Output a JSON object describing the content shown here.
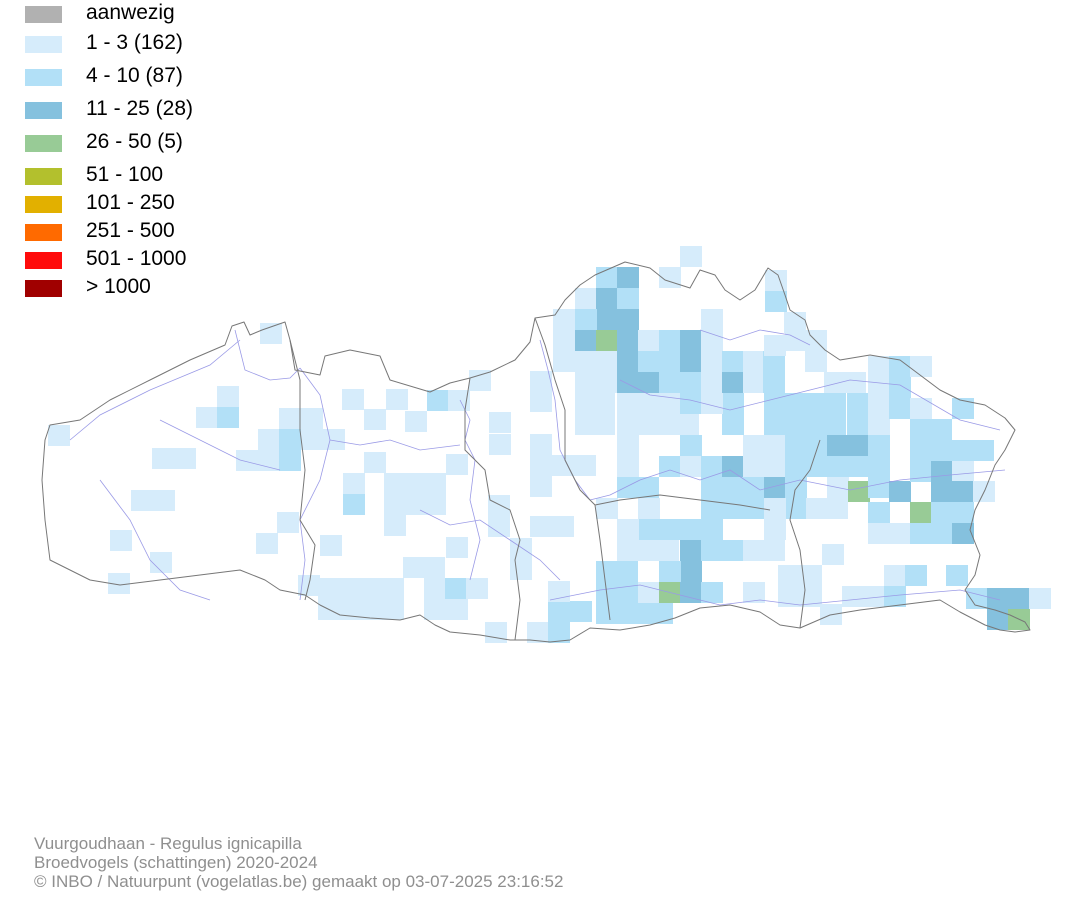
{
  "legend": {
    "items": [
      {
        "label": "aanwezig",
        "color": "#b1b1b1"
      },
      {
        "label": "1 - 3 (162)",
        "color": "#d6ecfb"
      },
      {
        "label": "4 - 10 (87)",
        "color": "#b2e0f7"
      },
      {
        "label": "11 - 25 (28)",
        "color": "#85c1de"
      },
      {
        "label": "26 - 50 (5)",
        "color": "#98cb96"
      },
      {
        "label": "51 - 100",
        "color": "#b3c02d"
      },
      {
        "label": "101 - 250",
        "color": "#e2b000"
      },
      {
        "label": "251 - 500",
        "color": "#ff6a00"
      },
      {
        "label": "501 - 1000",
        "color": "#ff0b0b"
      },
      {
        "label": "> 1000",
        "color": "#a00000"
      }
    ]
  },
  "map": {
    "border_color": "#777777",
    "river_color": "#9a9ae6"
  },
  "footer": {
    "line1": "Vuurgoudhaan - Regulus ignicapilla",
    "line2": "Broedvogels (schattingen) 2020-2024",
    "line3": "© INBO / Natuurpunt (vogelatlas.be) gemaakt op 03-07-2025 23:16:52"
  }
}
